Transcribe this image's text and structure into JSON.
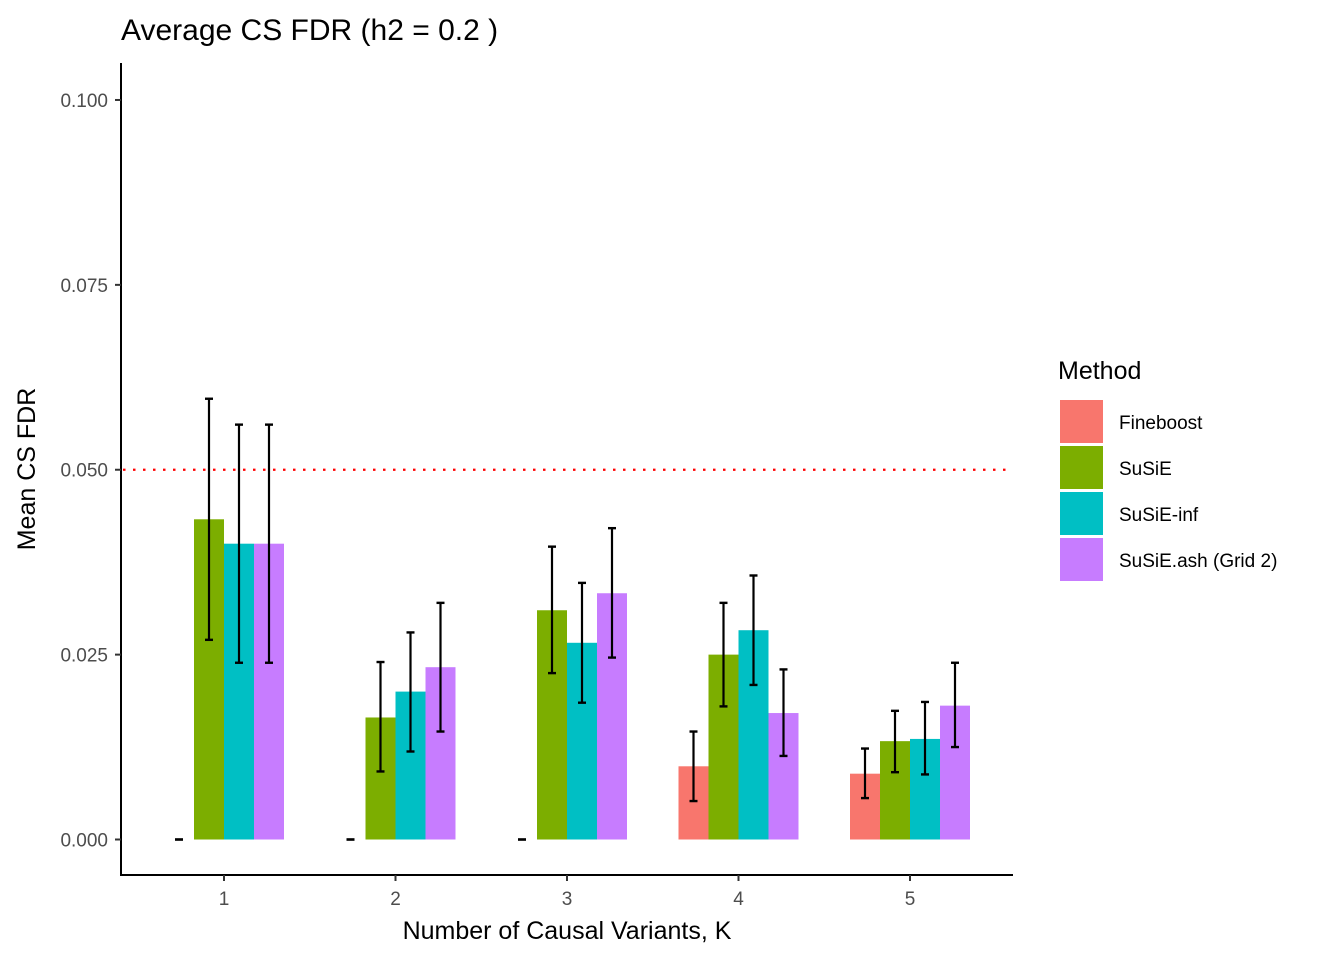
{
  "chart_data": {
    "type": "bar",
    "title": "Average CS FDR (h2 = 0.2 )",
    "xlabel": "Number of Causal Variants, K",
    "ylabel": "Mean CS FDR",
    "categories": [
      "1",
      "2",
      "3",
      "4",
      "5"
    ],
    "ylim": [
      -0.0048,
      0.105
    ],
    "yticks": [
      0.0,
      0.025,
      0.05,
      0.075,
      0.1
    ],
    "ytick_labels": [
      "0.000",
      "0.025",
      "0.050",
      "0.075",
      "0.100"
    ],
    "reference_line": {
      "y": 0.05,
      "style": "dotted",
      "color": "#ff0000"
    },
    "grid": false,
    "legend": {
      "title": "Method",
      "position": "right"
    },
    "series": [
      {
        "name": "Fineboost",
        "color": "#F8766D",
        "values": [
          0.0,
          0.0,
          0.0,
          0.0099,
          0.0089
        ],
        "err_low": [
          0.0,
          0.0,
          0.0,
          0.0052,
          0.0056
        ],
        "err_high": [
          0.0,
          0.0,
          0.0,
          0.0146,
          0.0123
        ]
      },
      {
        "name": "SuSiE",
        "color": "#7CAE00",
        "values": [
          0.0433,
          0.0165,
          0.031,
          0.025,
          0.0133
        ],
        "err_low": [
          0.027,
          0.0092,
          0.0225,
          0.018,
          0.0091
        ],
        "err_high": [
          0.0596,
          0.024,
          0.0396,
          0.032,
          0.0174
        ]
      },
      {
        "name": "SuSiE-inf",
        "color": "#00BFC4",
        "values": [
          0.04,
          0.02,
          0.0266,
          0.0283,
          0.0136
        ],
        "err_low": [
          0.0239,
          0.0119,
          0.0185,
          0.0209,
          0.0088
        ],
        "err_high": [
          0.0561,
          0.028,
          0.0347,
          0.0357,
          0.0186
        ]
      },
      {
        "name": "SuSiE.ash (Grid 2)",
        "color": "#C77CFF",
        "values": [
          0.04,
          0.0233,
          0.0333,
          0.0171,
          0.0181
        ],
        "err_low": [
          0.0239,
          0.0146,
          0.0246,
          0.0113,
          0.0125
        ],
        "err_high": [
          0.0561,
          0.032,
          0.0421,
          0.023,
          0.0239
        ]
      }
    ]
  }
}
